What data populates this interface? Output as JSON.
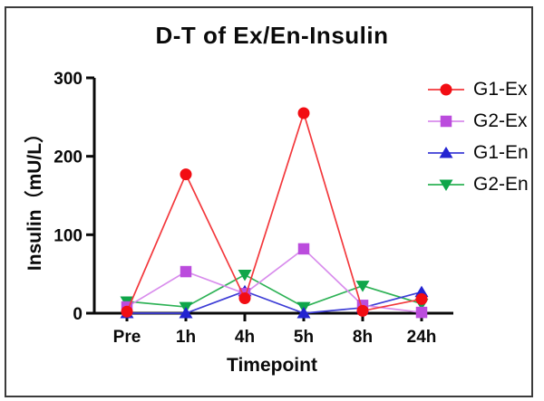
{
  "figure": {
    "border_color": "#3b3b3b",
    "background": "#ffffff",
    "axis_color": "#0a0a0a"
  },
  "chart_data": {
    "type": "line",
    "title": "D-T of Ex/En-Insulin",
    "xlabel": "Timepoint",
    "ylabel": "Insulin（mU/L）",
    "categories": [
      "Pre",
      "1h",
      "4h",
      "5h",
      "8h",
      "24h"
    ],
    "yticks": [
      0,
      100,
      200,
      300
    ],
    "ylim": [
      0,
      300
    ],
    "grid": false,
    "legend_position": "right",
    "series": [
      {
        "name": "G1-Ex",
        "marker": "circle",
        "color": "#F20D13",
        "line_color": "#F3383C",
        "values": [
          2,
          177,
          19,
          255,
          3,
          18
        ]
      },
      {
        "name": "G2-Ex",
        "marker": "square",
        "color": "#BB4CDD",
        "line_color": "#D88CEC",
        "values": [
          8,
          53,
          25,
          82,
          10,
          1
        ]
      },
      {
        "name": "G1-En",
        "marker": "triangle-up",
        "color": "#2323D1",
        "line_color": "#3D3DD6",
        "values": [
          0,
          0,
          28,
          0,
          7,
          27
        ]
      },
      {
        "name": "G2-En",
        "marker": "triangle-down",
        "color": "#0FA64A",
        "line_color": "#2EB256",
        "values": [
          15,
          8,
          49,
          8,
          35,
          12
        ]
      }
    ]
  }
}
